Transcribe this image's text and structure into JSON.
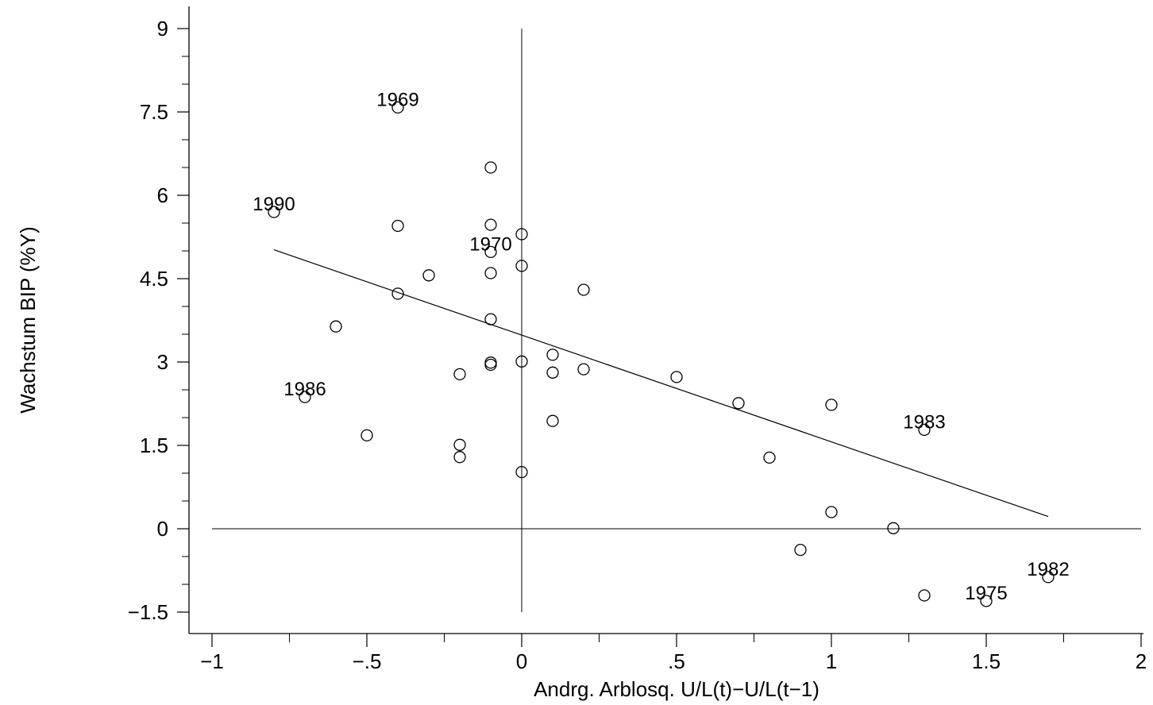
{
  "chart_data": {
    "type": "scatter",
    "xlabel": "Andrg. Arblosq. U/L(t)−U/L(t−1)",
    "ylabel": "Wachstum BIP (%Y)",
    "xlim": [
      -1,
      2
    ],
    "ylim": [
      -1.5,
      9
    ],
    "x_ticks": [
      -1,
      -0.5,
      0,
      0.5,
      1,
      1.5,
      2
    ],
    "x_tick_labels": [
      "−1",
      "−.5",
      "0",
      ".5",
      "1",
      "1.5",
      "2"
    ],
    "y_ticks": [
      -1.5,
      0,
      1.5,
      3,
      4.5,
      6,
      7.5,
      9
    ],
    "y_tick_labels": [
      "−1.5",
      "0",
      "1.5",
      "3",
      "4.5",
      "6",
      "7.5",
      "9"
    ],
    "y_minor_step": 0.5,
    "x_minor_step": 0.25,
    "reference_lines": {
      "x": 0,
      "y": 0
    },
    "fit_line": {
      "x": [
        -0.8,
        1.7
      ],
      "y": [
        5.02,
        0.22
      ]
    },
    "points": [
      {
        "x": -0.4,
        "y": 7.58,
        "label": "1969"
      },
      {
        "x": -0.8,
        "y": 5.7,
        "label": "1990"
      },
      {
        "x": -0.1,
        "y": 4.98,
        "label": "1970"
      },
      {
        "x": -0.7,
        "y": 2.37,
        "label": "1986"
      },
      {
        "x": 1.3,
        "y": 1.78,
        "label": "1983"
      },
      {
        "x": 1.7,
        "y": -0.87,
        "label": "1982"
      },
      {
        "x": 1.5,
        "y": -1.3,
        "label": "1975"
      },
      {
        "x": -0.1,
        "y": 6.5
      },
      {
        "x": -0.4,
        "y": 5.45
      },
      {
        "x": -0.1,
        "y": 5.47
      },
      {
        "x": 0.0,
        "y": 5.3
      },
      {
        "x": 0.0,
        "y": 4.73
      },
      {
        "x": -0.3,
        "y": 4.56
      },
      {
        "x": -0.1,
        "y": 4.6
      },
      {
        "x": 0.2,
        "y": 4.3
      },
      {
        "x": -0.4,
        "y": 4.23
      },
      {
        "x": -0.1,
        "y": 3.77
      },
      {
        "x": -0.6,
        "y": 3.64
      },
      {
        "x": 0.1,
        "y": 3.13
      },
      {
        "x": 0.0,
        "y": 3.01
      },
      {
        "x": -0.1,
        "y": 2.99
      },
      {
        "x": -0.1,
        "y": 2.95
      },
      {
        "x": 0.2,
        "y": 2.87
      },
      {
        "x": 0.1,
        "y": 2.81
      },
      {
        "x": -0.2,
        "y": 2.78
      },
      {
        "x": 0.5,
        "y": 2.73
      },
      {
        "x": 0.7,
        "y": 2.26
      },
      {
        "x": 1.0,
        "y": 2.23
      },
      {
        "x": 0.1,
        "y": 1.94
      },
      {
        "x": -0.5,
        "y": 1.68
      },
      {
        "x": -0.2,
        "y": 1.51
      },
      {
        "x": -0.2,
        "y": 1.29
      },
      {
        "x": 0.8,
        "y": 1.28
      },
      {
        "x": 0.0,
        "y": 1.02
      },
      {
        "x": 1.0,
        "y": 0.3
      },
      {
        "x": 1.2,
        "y": 0.01
      },
      {
        "x": 0.9,
        "y": -0.38
      },
      {
        "x": 1.3,
        "y": -1.2
      }
    ]
  }
}
